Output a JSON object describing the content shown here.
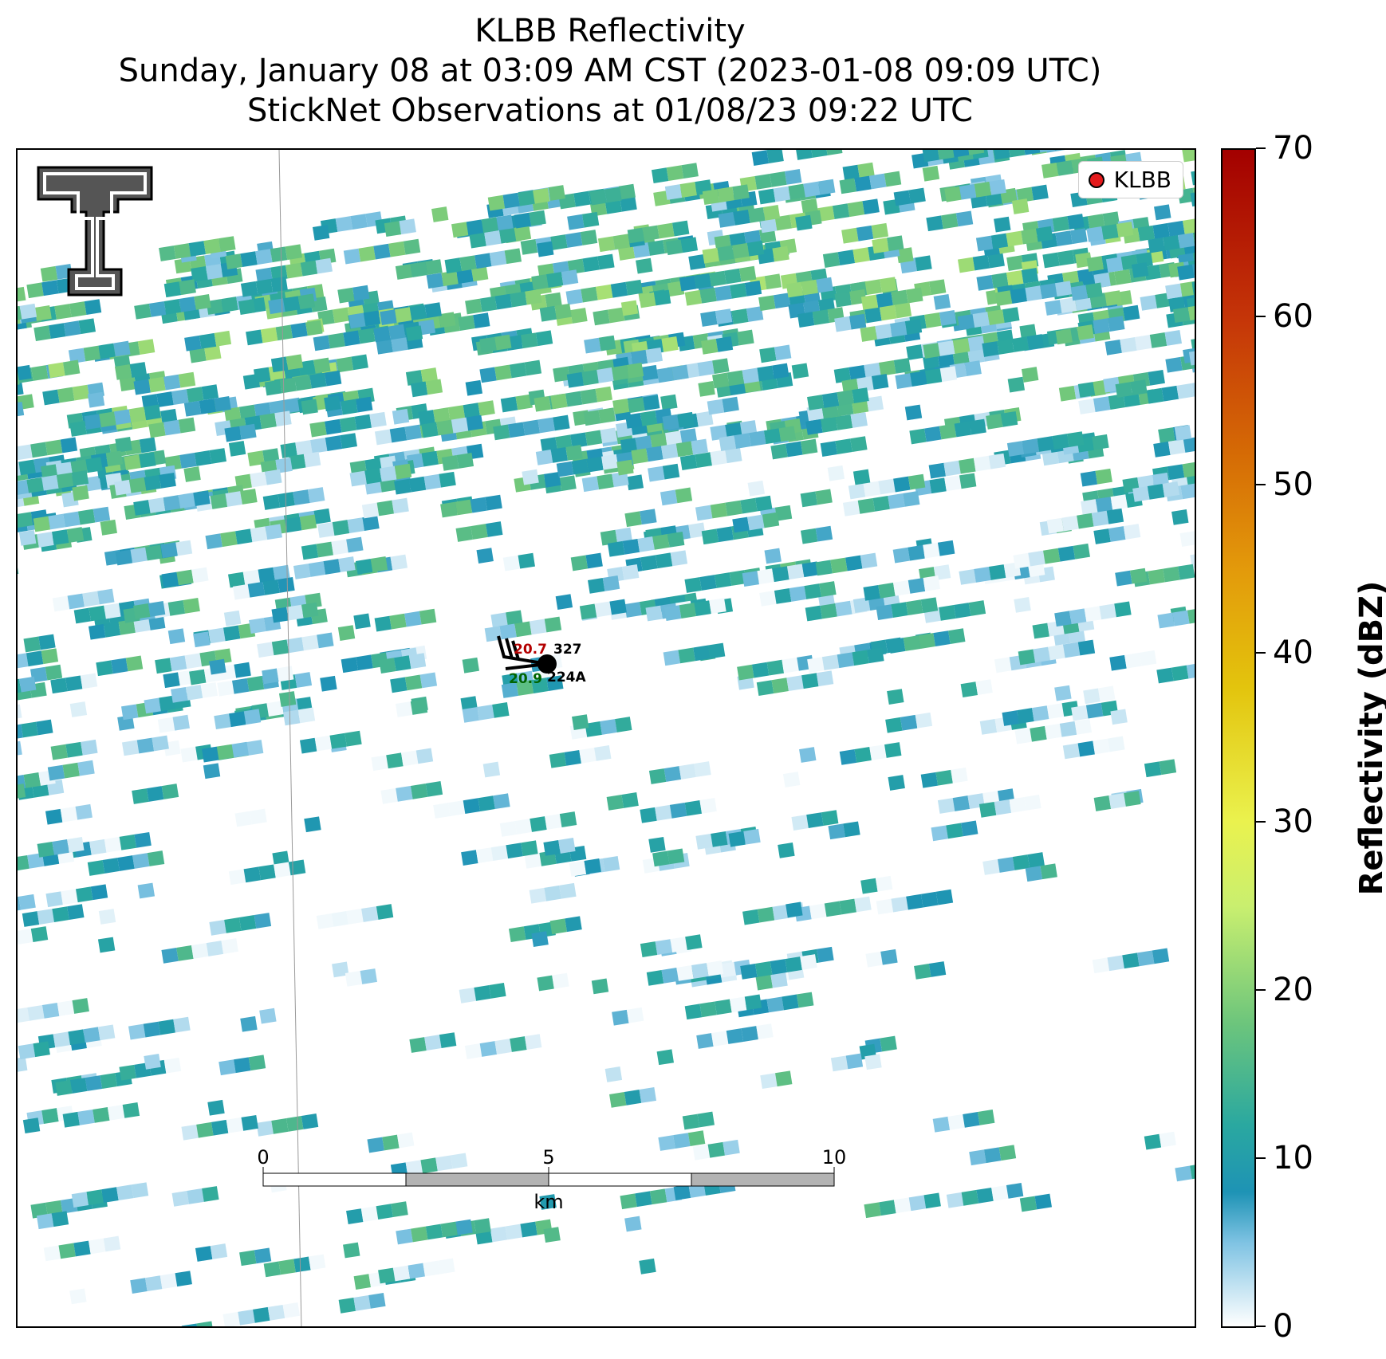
{
  "header": {
    "title_line1": "KLBB Reflectivity",
    "title_line2": "Sunday, January 08 at 03:09 AM CST (2023-01-08 09:09 UTC)",
    "title_line3": "StickNet Observations at 01/08/23 09:22 UTC"
  },
  "legend": {
    "label": "KLBB",
    "marker_color": "#e41a1c"
  },
  "colorbar": {
    "label": "Reflectivity (dBZ)",
    "ticks": [
      "0",
      "10",
      "20",
      "30",
      "40",
      "50",
      "60",
      "70"
    ],
    "min": 0,
    "max": 70,
    "stops": [
      {
        "v": 0,
        "c": "#ffffff"
      },
      {
        "v": 5,
        "c": "#7fc3e3"
      },
      {
        "v": 8,
        "c": "#1e93b5"
      },
      {
        "v": 12,
        "c": "#2aa8a0"
      },
      {
        "v": 18,
        "c": "#6cc57c"
      },
      {
        "v": 25,
        "c": "#c9ef6f"
      },
      {
        "v": 30,
        "c": "#eaf24e"
      },
      {
        "v": 38,
        "c": "#e3c40d"
      },
      {
        "v": 45,
        "c": "#e39a0b"
      },
      {
        "v": 52,
        "c": "#d56a05"
      },
      {
        "v": 60,
        "c": "#c53508"
      },
      {
        "v": 70,
        "c": "#a30000"
      }
    ]
  },
  "scale_bar": {
    "labels": [
      "0",
      "5",
      "10"
    ],
    "unit": "km"
  },
  "station": {
    "id": "224A",
    "temp": "20.7",
    "dewpoint": "20.9",
    "pressure": "327"
  },
  "logo": {
    "text": "TT"
  },
  "chart_data": {
    "type": "heatmap",
    "title": "KLBB Reflectivity",
    "value_label": "Reflectivity (dBZ)",
    "range": [
      0,
      70
    ],
    "cells_note": "scattered light echoes, mostly 0-20 dBZ",
    "stations": [
      {
        "id": "224A",
        "temperature": "20.7",
        "dewpoint": "20.9",
        "pressure": "327"
      }
    ]
  }
}
